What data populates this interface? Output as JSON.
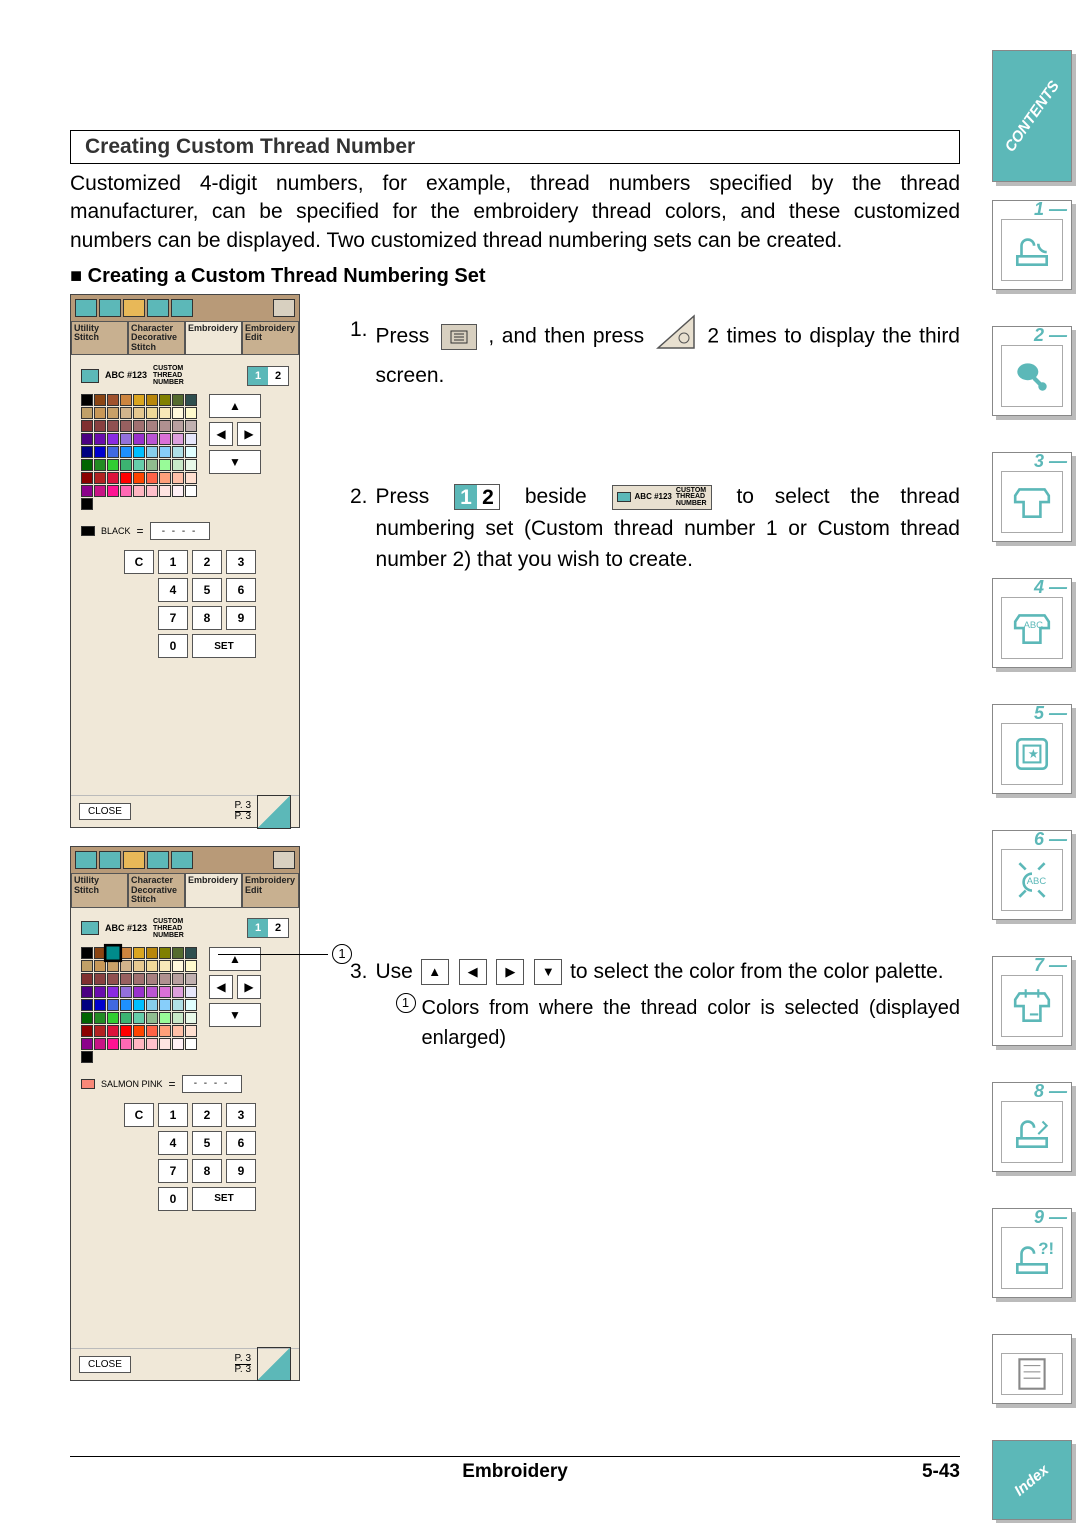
{
  "title": "Creating Custom Thread Number",
  "intro": "Customized 4-digit numbers, for example, thread numbers specified by the thread manufacturer, can be specified for the embroidery thread colors, and these customized numbers can be displayed. Two customized thread numbering sets can be created.",
  "subheading": "Creating a Custom Thread Numbering Set",
  "screen": {
    "tabs": [
      "Utility Stitch",
      "Character Decorative Stitch",
      "Embroidery",
      "Embroidery Edit"
    ],
    "selected_tab_index": 2,
    "ctn_prefix": "ABC #123",
    "ctn_label": "CUSTOM\nTHREAD\nNUMBER",
    "toggle": [
      "1",
      "2"
    ],
    "toggle_active": 0,
    "keypad": [
      "C",
      "1",
      "2",
      "3",
      "4",
      "5",
      "6",
      "7",
      "8",
      "9",
      "0"
    ],
    "set_label": "SET",
    "close_label": "CLOSE",
    "page_top": "P. 3",
    "page_bottom": "P. 3",
    "color1_label": "BLACK",
    "color2_label": "SALMON PINK",
    "dashes": "- - - -",
    "palette_rows": 8,
    "palette_cols": 9,
    "palette1_colors": [
      "#000000",
      "#8b4513",
      "#a0522d",
      "#cd853f",
      "#daa520",
      "#b8860b",
      "#808000",
      "#556b2f",
      "#2f4f4f",
      "#c0a068",
      "#c89858",
      "#c8a068",
      "#d2b48c",
      "#e6c890",
      "#f0d898",
      "#f8e8b8",
      "#fff8dc",
      "#fffacd",
      "#803030",
      "#884040",
      "#905050",
      "#986060",
      "#a07070",
      "#a88080",
      "#b09090",
      "#b8a0a0",
      "#c0b0b0",
      "#4b0082",
      "#6a0dad",
      "#8a2be2",
      "#9370db",
      "#9932cc",
      "#ba55d3",
      "#da70d6",
      "#dda0dd",
      "#e6e6fa",
      "#000080",
      "#0000cd",
      "#4169e1",
      "#1e90ff",
      "#00bfff",
      "#87ceeb",
      "#87cefa",
      "#b0e0e6",
      "#e0ffff",
      "#006400",
      "#228b22",
      "#32cd32",
      "#3cb371",
      "#66cdaa",
      "#8fbc8f",
      "#98fb98",
      "#c8e8c8",
      "#e8f8e8",
      "#8b0000",
      "#b22222",
      "#dc143c",
      "#ff0000",
      "#ff4500",
      "#ff6347",
      "#ffa07a",
      "#ffc0a8",
      "#ffe0d0",
      "#8b008b",
      "#c71585",
      "#ff1493",
      "#ff69b4",
      "#ffb6c1",
      "#ffc0cb",
      "#ffe4e1",
      "#fff0f5",
      "#ffffff"
    ],
    "palette2_colors": [
      "#000000",
      "#8b4513",
      "#008b8b",
      "#cd853f",
      "#daa520",
      "#b8860b",
      "#808000",
      "#556b2f",
      "#2f4f4f",
      "#c0a068",
      "#c89858",
      "#c8a068",
      "#d2b48c",
      "#e6c890",
      "#f0d898",
      "#f8e8b8",
      "#fff8dc",
      "#fffacd",
      "#803030",
      "#884040",
      "#905050",
      "#986060",
      "#a07070",
      "#a88080",
      "#b09090",
      "#b8a0a0",
      "#c0b0b0",
      "#4b0082",
      "#6a0dad",
      "#8a2be2",
      "#9370db",
      "#9932cc",
      "#ba55d3",
      "#da70d6",
      "#dda0dd",
      "#e6e6fa",
      "#000080",
      "#0000cd",
      "#4169e1",
      "#1e90ff",
      "#00bfff",
      "#87ceeb",
      "#87cefa",
      "#b0e0e6",
      "#e0ffff",
      "#006400",
      "#228b22",
      "#32cd32",
      "#3cb371",
      "#66cdaa",
      "#8fbc8f",
      "#98fb98",
      "#c8e8c8",
      "#e8f8e8",
      "#8b0000",
      "#b22222",
      "#dc143c",
      "#ff0000",
      "#ff4500",
      "#ff6347",
      "#ffa07a",
      "#ffc0a8",
      "#ffe0d0",
      "#8b008b",
      "#c71585",
      "#ff1493",
      "#ff69b4",
      "#ffb6c1",
      "#ffc0cb",
      "#ffe4e1",
      "#fff0f5",
      "#ffffff"
    ],
    "palette2_selected_index": 2
  },
  "steps": {
    "s1": {
      "num": "1.",
      "a": "Press",
      "b": ", and then press",
      "c": "2 times to display the third screen."
    },
    "s2": {
      "num": "2.",
      "a": "Press",
      "b": "beside",
      "c": "to select the thread numbering set (Custom thread number 1 or Custom thread number 2) that you wish to create."
    },
    "s3": {
      "num": "3.",
      "a": "Use",
      "b": "to select the color from the color palette.",
      "sub_num": "1",
      "sub": "Colors from where the thread color is selected (displayed enlarged)"
    }
  },
  "callout_num": "1",
  "footer_title": "Embroidery",
  "footer_page": "5-43",
  "side_tabs": {
    "contents": "CONTENTS",
    "nums": [
      "1 —",
      "2 —",
      "3 —",
      "4 —",
      "5 —",
      "6 —",
      "7 —",
      "8 —",
      "9 —"
    ],
    "index": "Index"
  },
  "colors": {
    "teal": "#5cb8b8",
    "beige": "#f0e8d8",
    "tab_bg": "#b89a78"
  }
}
